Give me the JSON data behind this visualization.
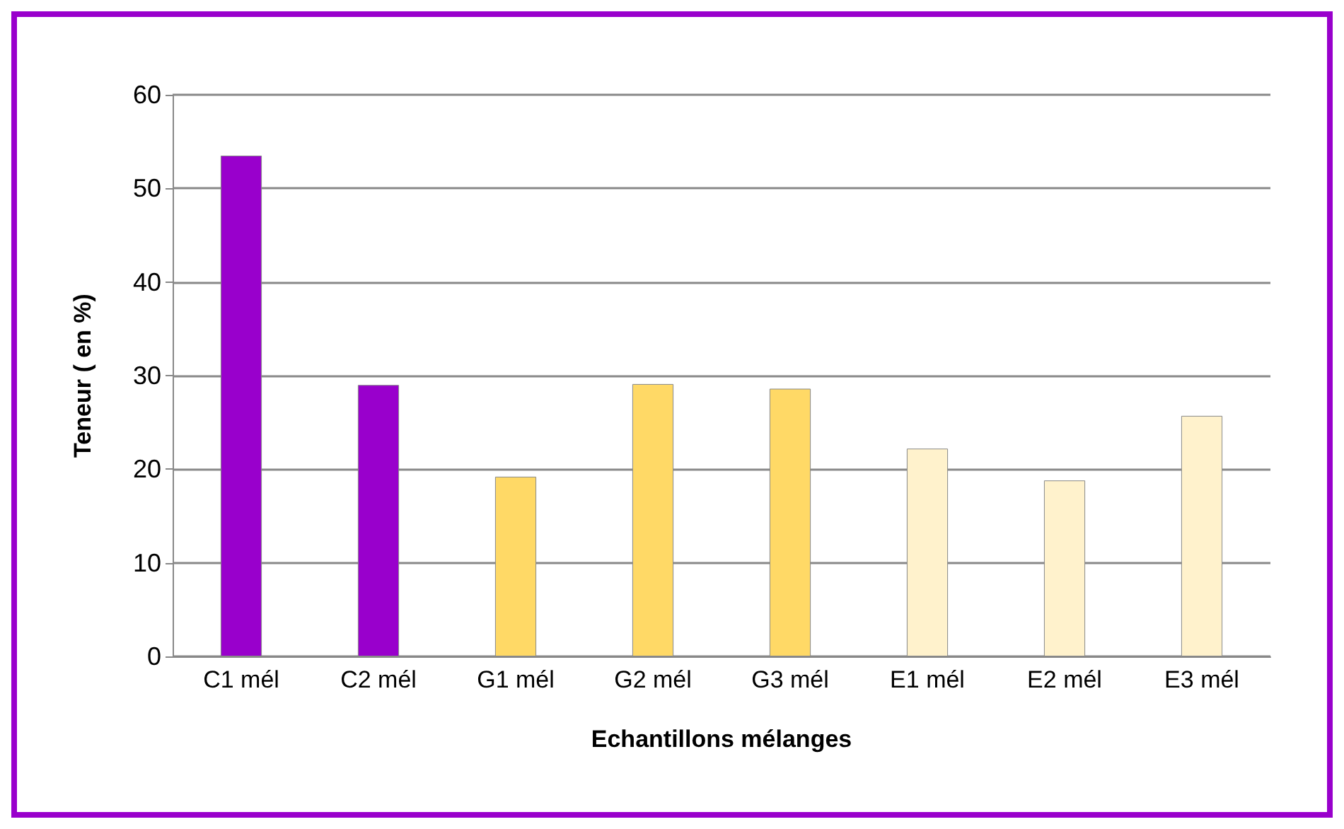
{
  "chart_data": {
    "type": "bar",
    "xlabel": "Echantillons mélanges",
    "ylabel": "Teneur ( en %)",
    "categories": [
      "C1 mél",
      "C2 mél",
      "G1 mél",
      "G2 mél",
      "G3 mél",
      "E1 mél",
      "E2 mél",
      "E3 mél"
    ],
    "values": [
      53.5,
      29,
      19.2,
      29.1,
      28.6,
      22.2,
      18.8,
      25.7
    ],
    "colors": [
      "#9900cc",
      "#9900cc",
      "#ffd966",
      "#ffd966",
      "#ffd966",
      "#fff2cc",
      "#fff2cc",
      "#fff2cc"
    ],
    "ylim": [
      0,
      60
    ],
    "yticks": [
      0,
      10,
      20,
      30,
      40,
      50,
      60
    ],
    "grid": "y"
  }
}
